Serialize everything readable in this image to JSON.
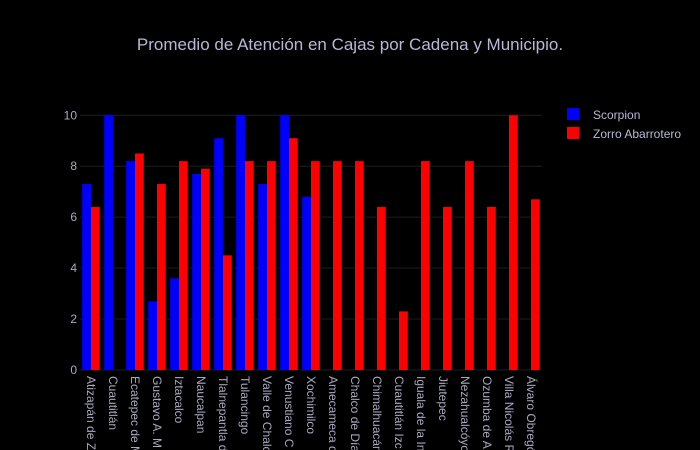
{
  "chart_data": {
    "type": "bar",
    "title": "Promedio de Atención en Cajas por Cadena y Municipio.",
    "xlabel": "",
    "ylabel": "",
    "ylim": [
      0,
      10.6
    ],
    "yticks": [
      0,
      2,
      4,
      6,
      8,
      10
    ],
    "grid": true,
    "legend_position": "top-right",
    "categories": [
      "Atizapán de Zaragoza",
      "Cuautitlán",
      "Ecatepec de Morelos",
      "Gustavo A. Madero",
      "Iztacalco",
      "Naucalpan",
      "Tlalnepantla de Baz",
      "Tulancingo",
      "Valle de Chalco",
      "Venustiano Carranza",
      "Xochimilco",
      "Amecameca de Juárez",
      "Chalco de Díaz Covarrubias",
      "Chimalhuacán",
      "Cuautitlán Izcalli",
      "Iguala de la Independencia",
      "Jiutepec",
      "Nezahualcóyotl",
      "Ozumba de Alzate",
      "Villa Nicolás Romero",
      "Álvaro Obregón"
    ],
    "tick_labels": [
      "Atizapán de Z",
      "Cuautitlán",
      "Ecatepec de M",
      "Gustavo A. M",
      "Iztacalco",
      "Naucalpan",
      "Tlalnepantla d",
      "Tulancingo",
      "Valle de Chalc",
      "Venustiano C",
      "Xochimilco",
      "Amecameca d",
      "Chalco de Día",
      "Chimalhuacán",
      "Cuautitlán Izc",
      "Iguala de la In",
      "Jiutepec",
      "Nezahualcóyo",
      "Ozumba de A",
      "Villa Nicolás R",
      "Álvaro Obregó"
    ],
    "series": [
      {
        "name": "Scorpion",
        "color": "#0000ff",
        "values": [
          7.3,
          10,
          8.2,
          2.7,
          3.6,
          7.7,
          9.1,
          10,
          7.3,
          10,
          6.8,
          null,
          null,
          null,
          null,
          null,
          null,
          null,
          null,
          null,
          null
        ]
      },
      {
        "name": "Zorro Abarrotero",
        "color": "#ff0000",
        "values": [
          6.4,
          null,
          8.5,
          7.3,
          8.2,
          7.9,
          4.5,
          8.2,
          8.2,
          9.1,
          8.2,
          8.2,
          8.2,
          6.4,
          2.3,
          8.2,
          6.4,
          8.2,
          6.4,
          10,
          6.7
        ]
      }
    ]
  }
}
